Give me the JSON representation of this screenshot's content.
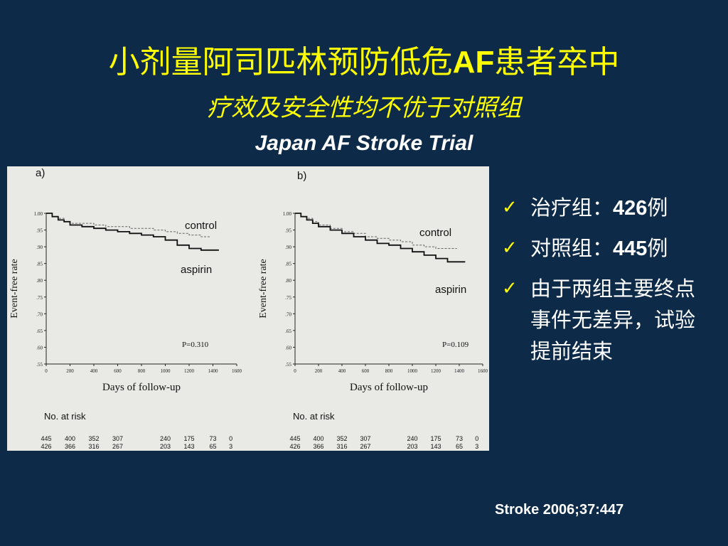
{
  "title": {
    "line1_a": "小剂量阿司匹林预防低危",
    "line1_af": "AF",
    "line1_b": "患者卒中",
    "line2": "疗效及安全性均不优于对照组",
    "line3": "Japan AF Stroke Trial"
  },
  "bullets": [
    {
      "pre": "治疗组：",
      "num": "426",
      "post": "例"
    },
    {
      "pre": "对照组：",
      "num": "445",
      "post": "例"
    },
    {
      "pre": "由于两组主要终点事件无差异，试验提前结束",
      "num": "",
      "post": ""
    }
  ],
  "citation": "Stroke 2006;37:447",
  "colors": {
    "background": "#0d2a48",
    "title": "#ffff00",
    "bullet_check": "#ffff00",
    "figure_bg": "#e9e9e6"
  },
  "chart_data": [
    {
      "type": "line",
      "panel_label": "a)",
      "xlabel": "Days of follow-up",
      "ylabel": "Event-free rate",
      "xlim": [
        0,
        1600
      ],
      "ylim": [
        0.55,
        1.0
      ],
      "x_ticks": [
        "0",
        "200",
        "400",
        "600",
        "800",
        "1000",
        "1200",
        "1400",
        "1600"
      ],
      "y_ticks": [
        "1.00",
        ".95",
        ".90",
        ".85",
        ".80",
        ".75",
        ".70",
        ".65",
        ".60",
        ".55"
      ],
      "p_value": "P=0.310",
      "series": [
        {
          "name": "control",
          "style": "dashed",
          "x": [
            0,
            50,
            100,
            150,
            200,
            300,
            400,
            500,
            600,
            700,
            800,
            900,
            1000,
            1100,
            1200,
            1300,
            1380
          ],
          "y": [
            1.0,
            0.99,
            0.985,
            0.975,
            0.97,
            0.97,
            0.965,
            0.96,
            0.96,
            0.955,
            0.955,
            0.95,
            0.945,
            0.94,
            0.935,
            0.93,
            0.93
          ]
        },
        {
          "name": "aspirin",
          "style": "solid",
          "x": [
            0,
            50,
            100,
            150,
            200,
            300,
            400,
            500,
            600,
            700,
            800,
            900,
            1000,
            1100,
            1200,
            1300,
            1450
          ],
          "y": [
            1.0,
            0.99,
            0.98,
            0.975,
            0.965,
            0.96,
            0.955,
            0.95,
            0.945,
            0.94,
            0.935,
            0.93,
            0.92,
            0.905,
            0.895,
            0.89,
            0.89
          ]
        }
      ],
      "risk_table": {
        "label": "No. at risk",
        "rows": [
          [
            "445",
            "400",
            "352",
            "307",
            "240",
            "175",
            "73",
            "0"
          ],
          [
            "426",
            "366",
            "316",
            "267",
            "203",
            "143",
            "65",
            "3"
          ]
        ]
      }
    },
    {
      "type": "line",
      "panel_label": "b)",
      "xlabel": "Days of follow-up",
      "ylabel": "Event-free rate",
      "xlim": [
        0,
        1600
      ],
      "ylim": [
        0.55,
        1.0
      ],
      "x_ticks": [
        "0",
        "200",
        "400",
        "600",
        "800",
        "1000",
        "1200",
        "1400",
        "1600"
      ],
      "y_ticks": [
        "1.00",
        ".95",
        ".90",
        ".85",
        ".80",
        ".75",
        ".70",
        ".65",
        ".60",
        ".55"
      ],
      "p_value": "P=0.109",
      "series": [
        {
          "name": "control",
          "style": "dashed",
          "x": [
            0,
            50,
            100,
            150,
            200,
            300,
            400,
            500,
            600,
            700,
            800,
            900,
            1000,
            1100,
            1200,
            1300,
            1380
          ],
          "y": [
            1.0,
            0.99,
            0.985,
            0.975,
            0.965,
            0.955,
            0.945,
            0.94,
            0.93,
            0.925,
            0.92,
            0.915,
            0.905,
            0.9,
            0.895,
            0.895,
            0.895
          ]
        },
        {
          "name": "aspirin",
          "style": "solid",
          "x": [
            0,
            50,
            100,
            150,
            200,
            300,
            400,
            500,
            600,
            700,
            800,
            900,
            1000,
            1100,
            1200,
            1300,
            1450
          ],
          "y": [
            1.0,
            0.99,
            0.98,
            0.97,
            0.96,
            0.95,
            0.94,
            0.93,
            0.92,
            0.91,
            0.905,
            0.895,
            0.885,
            0.875,
            0.865,
            0.855,
            0.855
          ]
        }
      ],
      "risk_table": {
        "label": "No. at risk",
        "rows": [
          [
            "445",
            "400",
            "352",
            "307",
            "240",
            "175",
            "73",
            "0"
          ],
          [
            "426",
            "366",
            "316",
            "267",
            "203",
            "143",
            "65",
            "3"
          ]
        ]
      }
    }
  ]
}
